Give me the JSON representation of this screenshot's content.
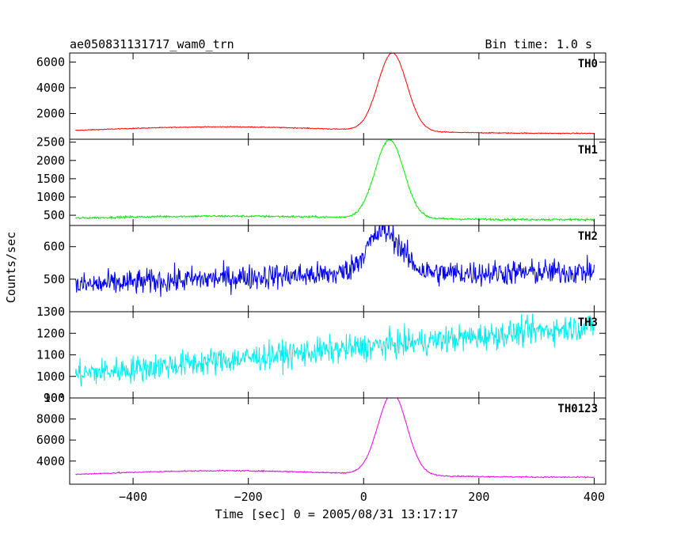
{
  "header": {
    "title": "ae050831131717_wam0_trn",
    "bin_time": "Bin time: 1.0 s"
  },
  "chart_data": {
    "type": "line",
    "xlabel": "Time [sec] 0 = 2005/08/31 13:17:17",
    "ylabel": "Counts/sec",
    "xlim": [
      -510,
      420
    ],
    "x_ticks": [
      -400,
      -200,
      0,
      200,
      400
    ],
    "x_step": 1.0,
    "panels": [
      {
        "name": "TH0",
        "color": "#ff0000",
        "ylim": [
          0,
          6700
        ],
        "y_ticks": [
          2000,
          4000,
          6000
        ],
        "y_tick_labels": [
          "2000",
          "4000",
          "6000"
        ],
        "shape": {
          "baseline_start": 400,
          "baseline_end": 450,
          "hump_peak": 550,
          "hump_center": -250,
          "hump_width": 220,
          "flare_peak": 6450,
          "flare_center": 50,
          "flare_width": 25,
          "noise": 25
        }
      },
      {
        "name": "TH1",
        "color": "#00ee00",
        "ylim": [
          220,
          2580
        ],
        "y_ticks": [
          500,
          1000,
          1500,
          2000,
          2500
        ],
        "y_tick_labels": [
          "500",
          "1000",
          "1500",
          "2000",
          "2500"
        ],
        "shape": {
          "baseline_start": 360,
          "baseline_end": 380,
          "hump_peak": 110,
          "hump_center": -250,
          "hump_width": 230,
          "flare_peak": 2500,
          "flare_center": 45,
          "flare_width": 25,
          "noise": 20
        }
      },
      {
        "name": "TH2",
        "color": "#0000ee",
        "ylim": [
          400,
          665
        ],
        "y_ticks": [
          500,
          600
        ],
        "y_tick_labels": [
          "500",
          "600"
        ],
        "shape": {
          "baseline_start": 470,
          "baseline_end": 520,
          "hump_peak": 20,
          "hump_center": -150,
          "hump_width": 300,
          "flare_peak": 600,
          "flare_center": 35,
          "flare_width": 30,
          "noise": 28
        }
      },
      {
        "name": "TH3",
        "color": "#00eeee",
        "ylim": [
          900,
          1300
        ],
        "y_ticks": [
          900,
          1000,
          1100,
          1200,
          1300
        ],
        "y_tick_labels": [
          "900",
          "1000",
          "1100",
          "1200",
          "1300"
        ],
        "shape": {
          "baseline_start": 1010,
          "baseline_end": 1235,
          "hump_peak": 0,
          "hump_center": 0,
          "hump_width": 100,
          "flare_peak": 1150,
          "flare_center": 40,
          "flare_width": 30,
          "noise": 45
        }
      },
      {
        "name": "TH0123",
        "color": "#ee00ee",
        "ylim": [
          1800,
          10000
        ],
        "y_ticks": [
          4000,
          6000,
          8000,
          10000
        ],
        "y_tick_labels": [
          "4000",
          "6000",
          "8000",
          "10⁴"
        ],
        "shape": {
          "baseline_start": 2350,
          "baseline_end": 2450,
          "hump_peak": 700,
          "hump_center": -250,
          "hump_width": 230,
          "flare_peak": 10100,
          "flare_center": 50,
          "flare_width": 25,
          "noise": 40
        }
      }
    ]
  }
}
